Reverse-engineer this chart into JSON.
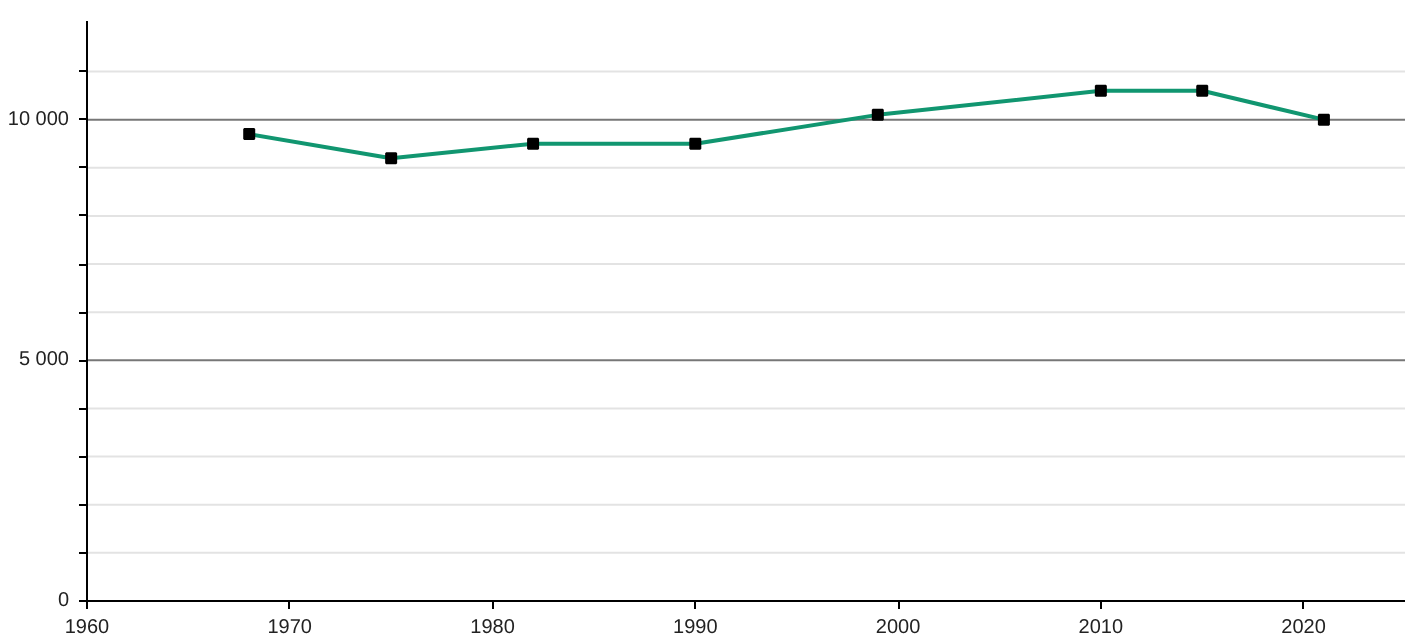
{
  "chart_data": {
    "type": "line",
    "x": [
      1968,
      1975,
      1982,
      1990,
      1999,
      2010,
      2015,
      2021
    ],
    "series": [
      {
        "color": "#119670",
        "values": [
          9700,
          9200,
          9500,
          9500,
          10100,
          10600,
          10600,
          10000
        ]
      }
    ],
    "xlim": [
      1960,
      2025
    ],
    "ylim": [
      0,
      12050
    ],
    "xticks": [
      1960,
      1970,
      1980,
      1990,
      2000,
      2010,
      2020
    ],
    "yticks": [
      {
        "value": 0,
        "label": "0"
      },
      {
        "value": 1000,
        "label": null
      },
      {
        "value": 2000,
        "label": null
      },
      {
        "value": 3000,
        "label": null
      },
      {
        "value": 4000,
        "label": null
      },
      {
        "value": 5000,
        "label": "5 000"
      },
      {
        "value": 6000,
        "label": null
      },
      {
        "value": 7000,
        "label": null
      },
      {
        "value": 8000,
        "label": null
      },
      {
        "value": 9000,
        "label": null
      },
      {
        "value": 10000,
        "label": "10 000"
      },
      {
        "value": 11000,
        "label": null
      }
    ],
    "grid": "y",
    "marker": "square",
    "line_style": "solid"
  }
}
